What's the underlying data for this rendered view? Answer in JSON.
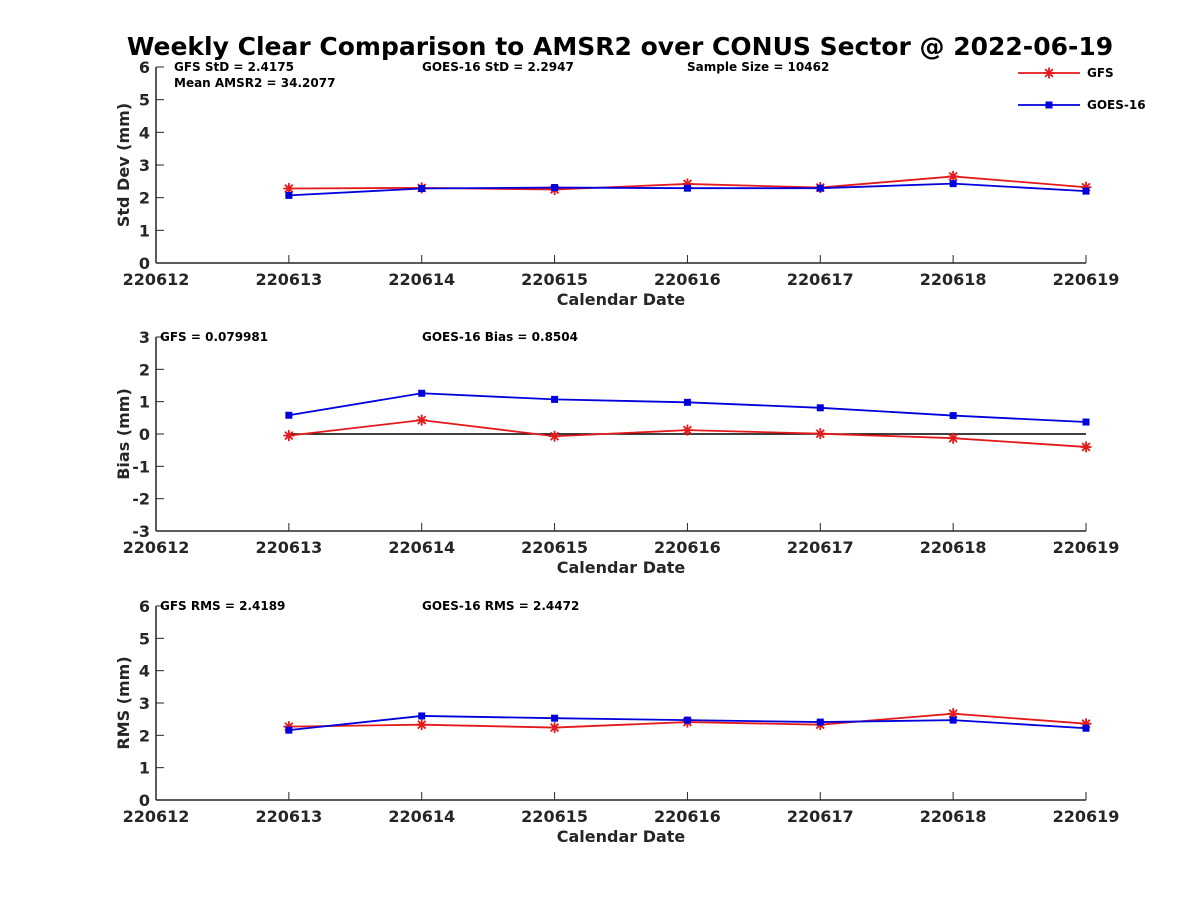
{
  "figure_title": "Weekly Clear Comparison to AMSR2 over CONUS Sector @ 2022-06-19",
  "colors": {
    "GFS": "#e41a1c",
    "GOES-16": "#0000dd",
    "zero_line": "#000000",
    "axis": "#262626"
  },
  "legend": {
    "placement": "top-right",
    "entries": [
      "GFS",
      "GOES-16"
    ]
  },
  "chart_data": [
    {
      "type": "line",
      "title": "",
      "xlabel": "Calendar Date",
      "ylabel": "Std Dev (mm)",
      "categories": [
        "220612",
        "220613",
        "220614",
        "220615",
        "220616",
        "220617",
        "220618",
        "220619"
      ],
      "ylim": [
        0,
        6
      ],
      "yticks": [
        0,
        1,
        2,
        3,
        4,
        5,
        6
      ],
      "zero_line": false,
      "annotations": [
        "GFS StD = 2.4175",
        "GOES-16 StD = 2.2947",
        "Sample Size = 10462",
        "Mean AMSR2 = 34.2077"
      ],
      "series": [
        {
          "name": "GFS",
          "marker": "star",
          "x": [
            "220613",
            "220614",
            "220615",
            "220616",
            "220617",
            "220618",
            "220619"
          ],
          "values": [
            2.28,
            2.3,
            2.25,
            2.42,
            2.31,
            2.65,
            2.32
          ]
        },
        {
          "name": "GOES-16",
          "marker": "square",
          "x": [
            "220613",
            "220614",
            "220615",
            "220616",
            "220617",
            "220618",
            "220619"
          ],
          "values": [
            2.07,
            2.28,
            2.31,
            2.29,
            2.29,
            2.43,
            2.2
          ]
        }
      ]
    },
    {
      "type": "line",
      "title": "",
      "xlabel": "Calendar Date",
      "ylabel": "Bias (mm)",
      "categories": [
        "220612",
        "220613",
        "220614",
        "220615",
        "220616",
        "220617",
        "220618",
        "220619"
      ],
      "ylim": [
        -3,
        3
      ],
      "yticks": [
        -3,
        -2,
        -1,
        0,
        1,
        2,
        3
      ],
      "zero_line": true,
      "annotations": [
        "GFS = 0.079981",
        "GOES-16 Bias  = 0.8504"
      ],
      "series": [
        {
          "name": "GFS",
          "marker": "star",
          "x": [
            "220613",
            "220614",
            "220615",
            "220616",
            "220617",
            "220618",
            "220619"
          ],
          "values": [
            -0.05,
            0.43,
            -0.07,
            0.12,
            0.01,
            -0.13,
            -0.4
          ]
        },
        {
          "name": "GOES-16",
          "marker": "square",
          "x": [
            "220613",
            "220614",
            "220615",
            "220616",
            "220617",
            "220618",
            "220619"
          ],
          "values": [
            0.58,
            1.26,
            1.07,
            0.98,
            0.81,
            0.57,
            0.37
          ]
        }
      ]
    },
    {
      "type": "line",
      "title": "",
      "xlabel": "Calendar Date",
      "ylabel": "RMS (mm)",
      "categories": [
        "220612",
        "220613",
        "220614",
        "220615",
        "220616",
        "220617",
        "220618",
        "220619"
      ],
      "ylim": [
        0,
        6
      ],
      "yticks": [
        0,
        1,
        2,
        3,
        4,
        5,
        6
      ],
      "zero_line": false,
      "annotations": [
        "GFS RMS = 2.4189",
        "GOES-16 RMS = 2.4472"
      ],
      "series": [
        {
          "name": "GFS",
          "marker": "star",
          "x": [
            "220613",
            "220614",
            "220615",
            "220616",
            "220617",
            "220618",
            "220619"
          ],
          "values": [
            2.27,
            2.33,
            2.24,
            2.41,
            2.33,
            2.67,
            2.36
          ]
        },
        {
          "name": "GOES-16",
          "marker": "square",
          "x": [
            "220613",
            "220614",
            "220615",
            "220616",
            "220617",
            "220618",
            "220619"
          ],
          "values": [
            2.16,
            2.6,
            2.53,
            2.47,
            2.41,
            2.47,
            2.22
          ]
        }
      ]
    }
  ]
}
